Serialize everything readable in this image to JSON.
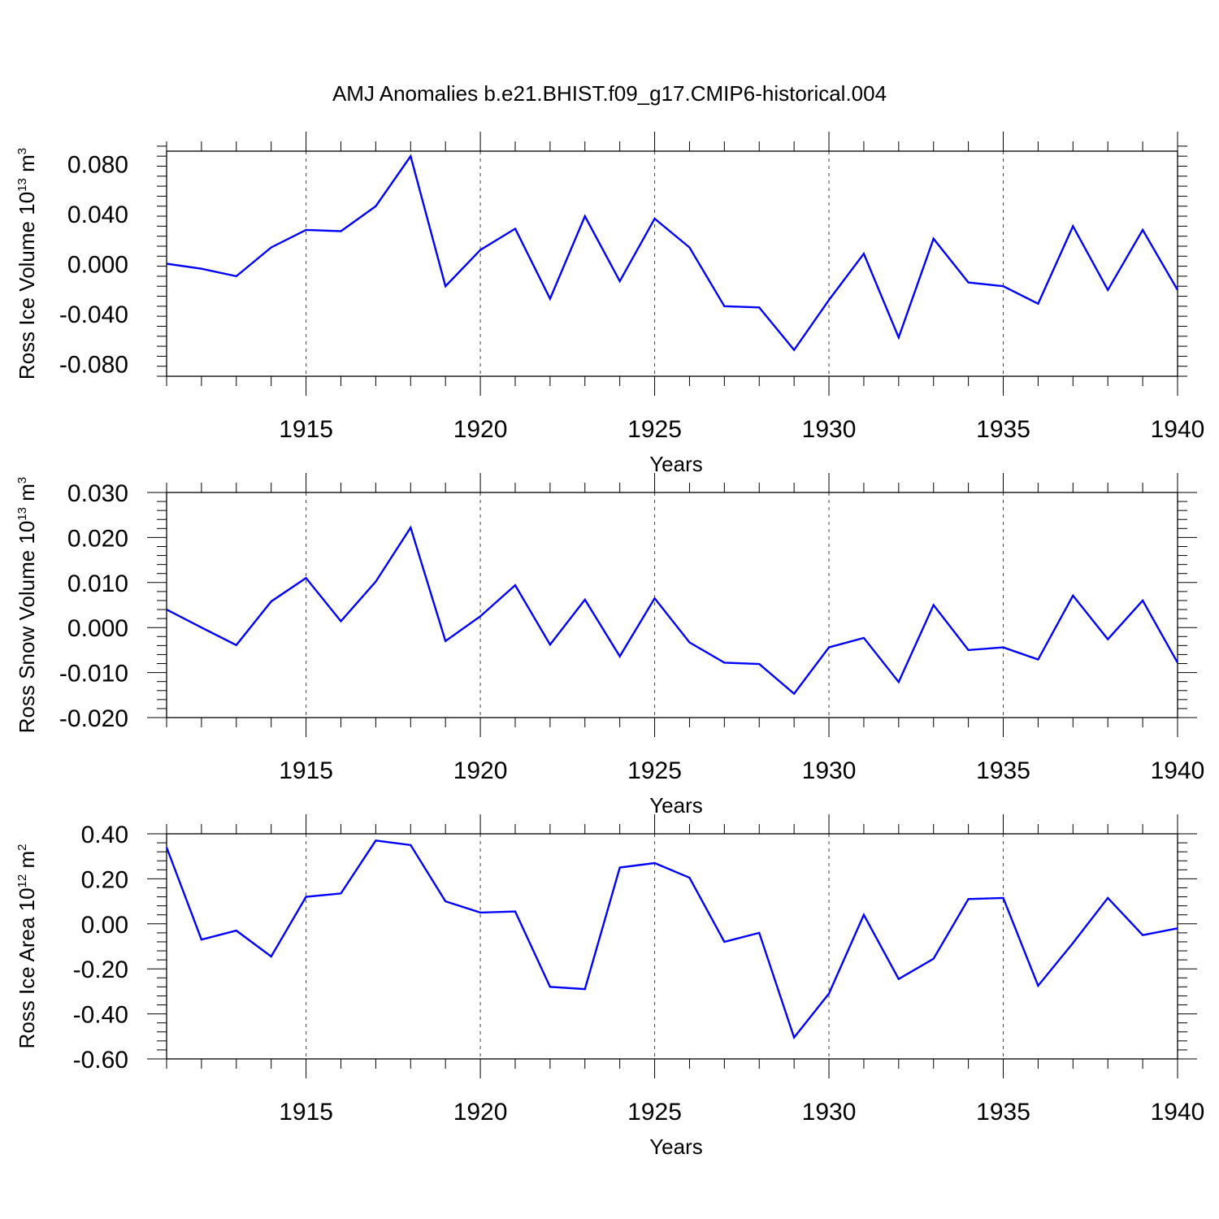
{
  "title": "AMJ Anomalies b.e21.BHIST.f09_g17.CMIP6-historical.004",
  "colors": {
    "line": "#0000ff",
    "axis": "#000000",
    "grid": "#444444"
  },
  "chart_data": [
    {
      "type": "line",
      "title": "AMJ Anomalies b.e21.BHIST.f09_g17.CMIP6-historical.004",
      "xlabel": "Years",
      "ylabel": {
        "text": "Ross Ice Volume 10",
        "exp": "13",
        "unit": " m",
        "unit_exp": "3"
      },
      "xlim": [
        1911,
        1940
      ],
      "ylim": [
        -0.09,
        0.09
      ],
      "x_ticks": [
        "1915",
        "1920",
        "1925",
        "1930",
        "1935",
        "1940"
      ],
      "y_ticks": [
        "0.080",
        "0.040",
        "0.000",
        "-0.040",
        "-0.080"
      ],
      "y_tick_values": [
        0.08,
        0.04,
        0.0,
        -0.04,
        -0.08
      ],
      "grid": "vertical dashed at major x ticks",
      "series": [
        {
          "x": [
            1911,
            1912,
            1913,
            1914,
            1915,
            1916,
            1917,
            1918,
            1919,
            1920,
            1921,
            1922,
            1923,
            1924,
            1925,
            1926,
            1927,
            1928,
            1929,
            1930,
            1931,
            1932,
            1933,
            1934,
            1935,
            1936,
            1937,
            1938,
            1939,
            1940
          ],
          "values": [
            0.0,
            -0.004,
            -0.01,
            0.013,
            0.027,
            0.026,
            0.046,
            0.086,
            -0.018,
            0.011,
            0.028,
            -0.028,
            0.038,
            -0.014,
            0.036,
            0.013,
            -0.034,
            -0.035,
            -0.069,
            -0.029,
            0.008,
            -0.059,
            0.02,
            -0.015,
            -0.018,
            -0.032,
            0.03,
            -0.021,
            0.027,
            -0.021
          ]
        }
      ]
    },
    {
      "type": "line",
      "xlabel": "Years",
      "ylabel": {
        "text": "Ross Snow Volume 10",
        "exp": "13",
        "unit": " m",
        "unit_exp": "3"
      },
      "xlim": [
        1911,
        1940
      ],
      "ylim": [
        -0.02,
        0.03
      ],
      "x_ticks": [
        "1915",
        "1920",
        "1925",
        "1930",
        "1935",
        "1940"
      ],
      "y_ticks": [
        "0.030",
        "0.020",
        "0.010",
        "0.000",
        "-0.010",
        "-0.020"
      ],
      "y_tick_values": [
        0.03,
        0.02,
        0.01,
        0.0,
        -0.01,
        -0.02
      ],
      "grid": "vertical dashed at major x ticks",
      "series": [
        {
          "x": [
            1911,
            1912,
            1913,
            1914,
            1915,
            1916,
            1917,
            1918,
            1919,
            1920,
            1921,
            1922,
            1923,
            1924,
            1925,
            1926,
            1927,
            1928,
            1929,
            1930,
            1931,
            1932,
            1933,
            1934,
            1935,
            1936,
            1937,
            1938,
            1939,
            1940
          ],
          "values": [
            0.004,
            0.0,
            -0.0039,
            0.0058,
            0.011,
            0.0014,
            0.0102,
            0.0222,
            -0.003,
            0.0025,
            0.0094,
            -0.0038,
            0.0062,
            -0.0064,
            0.0065,
            -0.0033,
            -0.0078,
            -0.0081,
            -0.0147,
            -0.0044,
            -0.0023,
            -0.0121,
            0.005,
            -0.005,
            -0.0044,
            -0.0071,
            0.0071,
            -0.0026,
            0.006,
            -0.0078
          ]
        }
      ]
    },
    {
      "type": "line",
      "xlabel": "Years",
      "ylabel": {
        "text": "Ross Ice Area 10",
        "exp": "12",
        "unit": " m",
        "unit_exp": "2"
      },
      "xlim": [
        1911,
        1940
      ],
      "ylim": [
        -0.6,
        0.4
      ],
      "x_ticks": [
        "1915",
        "1920",
        "1925",
        "1930",
        "1935",
        "1940"
      ],
      "y_ticks": [
        "0.40",
        "0.20",
        "0.00",
        "-0.20",
        "-0.40",
        "-0.60"
      ],
      "y_tick_values": [
        0.4,
        0.2,
        0.0,
        -0.2,
        -0.4,
        -0.6
      ],
      "grid": "vertical dashed at major x ticks",
      "series": [
        {
          "x": [
            1911,
            1912,
            1913,
            1914,
            1915,
            1916,
            1917,
            1918,
            1919,
            1920,
            1921,
            1922,
            1923,
            1924,
            1925,
            1926,
            1927,
            1928,
            1929,
            1930,
            1931,
            1932,
            1933,
            1934,
            1935,
            1936,
            1937,
            1938,
            1939,
            1940
          ],
          "values": [
            0.34,
            -0.07,
            -0.03,
            -0.145,
            0.12,
            0.135,
            0.37,
            0.35,
            0.1,
            0.05,
            0.055,
            -0.28,
            -0.29,
            0.25,
            0.27,
            0.205,
            -0.08,
            -0.04,
            -0.505,
            -0.31,
            0.04,
            -0.245,
            -0.155,
            0.11,
            0.115,
            -0.275,
            -0.085,
            0.115,
            -0.05,
            -0.02
          ]
        }
      ]
    }
  ]
}
